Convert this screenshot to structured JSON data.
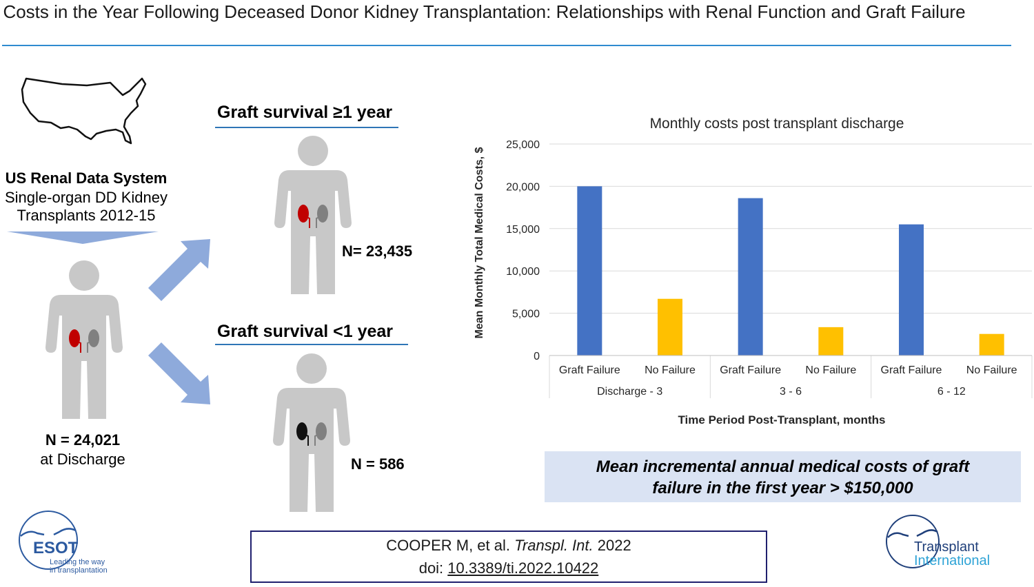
{
  "title": "Costs in the Year Following Deceased Donor Kidney Transplantation: Relationships with Renal Function and Graft Failure",
  "source": {
    "heading": "US Renal Data System",
    "line1": "Single-organ DD Kidney",
    "line2": "Transplants 2012-15",
    "count": "N = 24,021",
    "count_sub": "at Discharge"
  },
  "outcomes": [
    {
      "heading": "Graft survival ≥1 year",
      "count": "N= 23,435"
    },
    {
      "heading": "Graft survival <1 year",
      "count": "N = 586"
    }
  ],
  "chart_data": {
    "type": "bar",
    "title": "Monthly costs post transplant discharge",
    "ylabel": "Mean Monthly Total Medical Costs, $",
    "xlabel": "Time Period Post-Transplant, months",
    "ylim": [
      0,
      25000
    ],
    "yticks": [
      0,
      5000,
      10000,
      15000,
      20000,
      25000
    ],
    "ytick_labels": [
      "0",
      "5,000",
      "10,000",
      "15,000",
      "20,000",
      "25,000"
    ],
    "grid": true,
    "groups": [
      "Discharge - 3",
      "3 - 6",
      "6 - 12"
    ],
    "categories": [
      "Graft Failure",
      "No Failure"
    ],
    "colors": {
      "Graft Failure": "#4472c4",
      "No Failure": "#ffc000"
    },
    "values": [
      [
        20000,
        6700
      ],
      [
        18600,
        3350
      ],
      [
        15500,
        2550
      ]
    ]
  },
  "banner": {
    "line1": "Mean incremental annual medical costs of graft",
    "line2": "failure in the first year > $150,000"
  },
  "citation": {
    "authors": "COOPER M, et al. ",
    "journal": "Transpl. Int.",
    "year": " 2022",
    "doi_label": "doi: ",
    "doi": "10.3389/ti.2022.10422"
  },
  "logos": {
    "left": {
      "name": "ESOT",
      "tagline1": "Leading the way",
      "tagline2": "in transplantation"
    },
    "right": {
      "line1": "Transplant",
      "line2": "International"
    }
  },
  "colors": {
    "accent": "#2e8bd0",
    "arrow": "#8eaadb",
    "figure": "#c8c8c8",
    "kidney_red": "#c00000",
    "kidney_gray": "#808080",
    "banner_bg": "#dae3f3"
  }
}
